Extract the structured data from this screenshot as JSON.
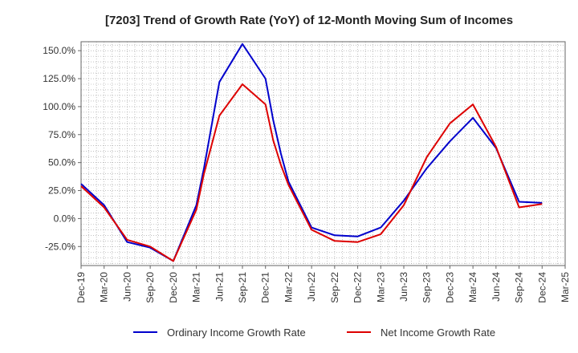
{
  "chart_data": {
    "type": "line",
    "title": "[7203]  Trend of Growth Rate (YoY) of 12-Month Moving Sum of Incomes",
    "xlabel": "",
    "ylabel": "",
    "ylim": [
      -42,
      158
    ],
    "y_ticks": [
      "150.0%",
      "125.0%",
      "100.0%",
      "75.0%",
      "50.0%",
      "25.0%",
      "0.0%",
      "-25.0%"
    ],
    "x_ticks": [
      "Dec-19",
      "Mar-20",
      "Jun-20",
      "Sep-20",
      "Dec-20",
      "Mar-21",
      "Jun-21",
      "Sep-21",
      "Dec-21",
      "Mar-22",
      "Jun-22",
      "Sep-22",
      "Dec-22",
      "Mar-23",
      "Jun-23",
      "Sep-23",
      "Dec-23",
      "Mar-24",
      "Jun-24",
      "Sep-24",
      "Dec-24",
      "Mar-25"
    ],
    "grid": true,
    "legend_position": "bottom",
    "series": [
      {
        "name": "Ordinary Income Growth Rate",
        "color": "#0000cc",
        "points": [
          [
            "Dec-19",
            31
          ],
          [
            "Mar-20",
            12
          ],
          [
            "Jun-20",
            -21
          ],
          [
            "Sep-20",
            -26
          ],
          [
            "Dec-20",
            -38
          ],
          [
            "Mar-21",
            12
          ],
          [
            "Apr-21",
            45
          ],
          [
            "Jun-21",
            122
          ],
          [
            "Sep-21",
            156
          ],
          [
            "Dec-21",
            125
          ],
          [
            "Jan-22",
            88
          ],
          [
            "Feb-22",
            58
          ],
          [
            "Mar-22",
            33
          ],
          [
            "Jun-22",
            -8
          ],
          [
            "Sep-22",
            -15
          ],
          [
            "Dec-22",
            -16
          ],
          [
            "Mar-23",
            -8
          ],
          [
            "Jun-23",
            16
          ],
          [
            "Sep-23",
            45
          ],
          [
            "Dec-23",
            69
          ],
          [
            "Mar-24",
            90
          ],
          [
            "Jun-24",
            63
          ],
          [
            "Sep-24",
            15
          ],
          [
            "Dec-24",
            14
          ]
        ]
      },
      {
        "name": "Net Income Growth Rate",
        "color": "#dd0000",
        "points": [
          [
            "Dec-19",
            29
          ],
          [
            "Mar-20",
            10
          ],
          [
            "Jun-20",
            -19
          ],
          [
            "Sep-20",
            -25
          ],
          [
            "Dec-20",
            -38
          ],
          [
            "Mar-21",
            8
          ],
          [
            "Apr-21",
            40
          ],
          [
            "Jun-21",
            92
          ],
          [
            "Sep-21",
            120
          ],
          [
            "Dec-21",
            102
          ],
          [
            "Jan-22",
            70
          ],
          [
            "Feb-22",
            48
          ],
          [
            "Mar-22",
            30
          ],
          [
            "Jun-22",
            -10
          ],
          [
            "Sep-22",
            -20
          ],
          [
            "Dec-22",
            -21
          ],
          [
            "Mar-23",
            -14
          ],
          [
            "Jun-23",
            12
          ],
          [
            "Sep-23",
            55
          ],
          [
            "Dec-23",
            85
          ],
          [
            "Mar-24",
            102
          ],
          [
            "Jun-24",
            64
          ],
          [
            "Sep-24",
            10
          ],
          [
            "Dec-24",
            13
          ]
        ]
      }
    ]
  }
}
